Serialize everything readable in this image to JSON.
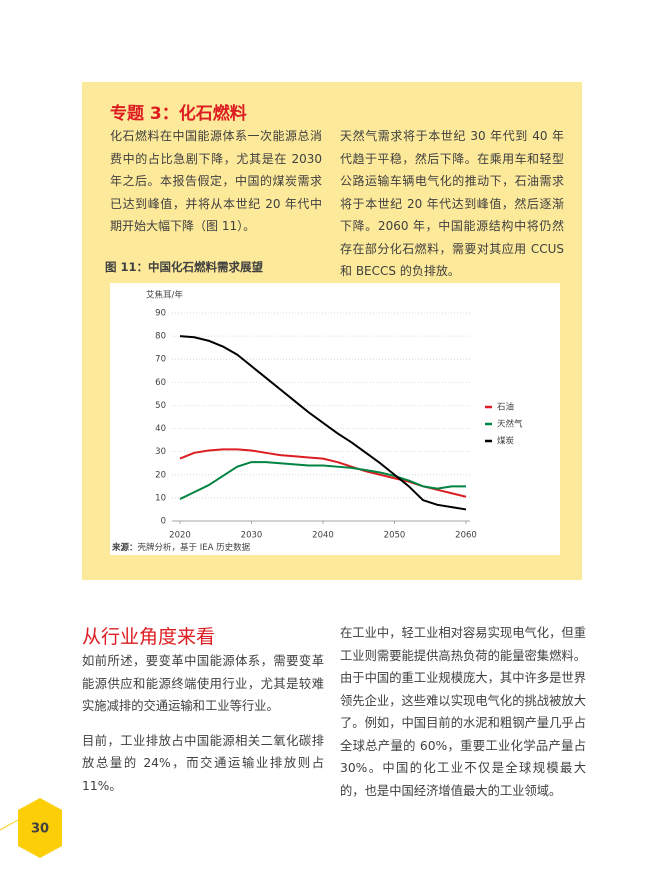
{
  "box": {
    "title": "专题 3：化石燃料",
    "paragraphs": [
      "化石燃料在中国能源体系一次能源总消费中的占比急剧下降，尤其是在 2030 年之后。本报告假定，中国的煤炭需求已达到峰值，并将从本世纪 20 年代中期开始大幅下降（图 11）。",
      "天然气需求将于本世纪 30 年代到 40 年代趋于平稳，然后下降。在乘用车和轻型公路运输车辆电气化的推动下，石油需求将于本世纪 20 年代达到峰值，然后逐渐下降。2060 年，中国能源结构中将仍然存在部分化石燃料，需要对其应用 CCUS 和 BECCS 的负排放。"
    ],
    "figure_title": "图 11：中国化石燃料需求展望",
    "source_label": "来源：",
    "source": "壳牌分析，基于 IEA 历史数据"
  },
  "chart_data": {
    "type": "line",
    "y_label": "艾焦耳/年",
    "x": [
      2020,
      2022,
      2024,
      2026,
      2028,
      2030,
      2032,
      2034,
      2036,
      2038,
      2040,
      2042,
      2044,
      2046,
      2048,
      2050,
      2052,
      2054,
      2056,
      2058,
      2060
    ],
    "series": [
      {
        "name": "石油",
        "color": "#dd1d21",
        "values": [
          27,
          29.5,
          30.5,
          31,
          31,
          30.5,
          29.5,
          28.5,
          28,
          27.5,
          27,
          25.5,
          23.5,
          21.5,
          20,
          18.5,
          17,
          15,
          13.5,
          12,
          10.5
        ]
      },
      {
        "name": "天然气",
        "color": "#008443",
        "values": [
          9.5,
          12.5,
          15.5,
          19.5,
          23.5,
          25.5,
          25.5,
          25,
          24.5,
          24,
          24,
          23.5,
          23,
          22,
          21,
          19.5,
          17.5,
          15,
          14,
          15,
          15
        ]
      },
      {
        "name": "煤炭",
        "color": "#000000",
        "values": [
          80,
          79.5,
          78,
          75.5,
          72,
          67,
          62,
          57,
          52,
          47,
          42.5,
          38,
          34,
          29.5,
          25,
          20,
          15,
          9,
          7,
          6,
          5
        ]
      }
    ],
    "xlim": [
      2020,
      2060
    ],
    "xticks": [
      2020,
      2030,
      2040,
      2050,
      2060
    ],
    "ylim": [
      0,
      90
    ],
    "yticks": [
      0,
      10,
      20,
      30,
      40,
      50,
      60,
      70,
      80,
      90
    ],
    "grid": true,
    "legend": "right"
  },
  "section": {
    "heading": "从行业角度来看",
    "left": [
      "如前所述，要变革中国能源体系，需要变革能源供应和能源终端使用行业，尤其是较难实施减排的交通运输和工业等行业。",
      "目前，工业排放占中国能源相关二氧化碳排放总量的 24%，而交通运输业排放则占 11%。"
    ],
    "right": "在工业中，轻工业相对容易实现电气化，但重工业则需要能提供高热负荷的能量密集燃料。由于中国的重工业规模庞大，其中许多是世界领先企业，这些难以实现电气化的挑战被放大了。例如，中国目前的水泥和粗钢产量几乎占全球总产量的 60%，重要工业化学品产量占 30%。中国的化工业不仅是全球规模最大的，也是中国经济增值最大的工业领域。"
  },
  "page_number": "30"
}
